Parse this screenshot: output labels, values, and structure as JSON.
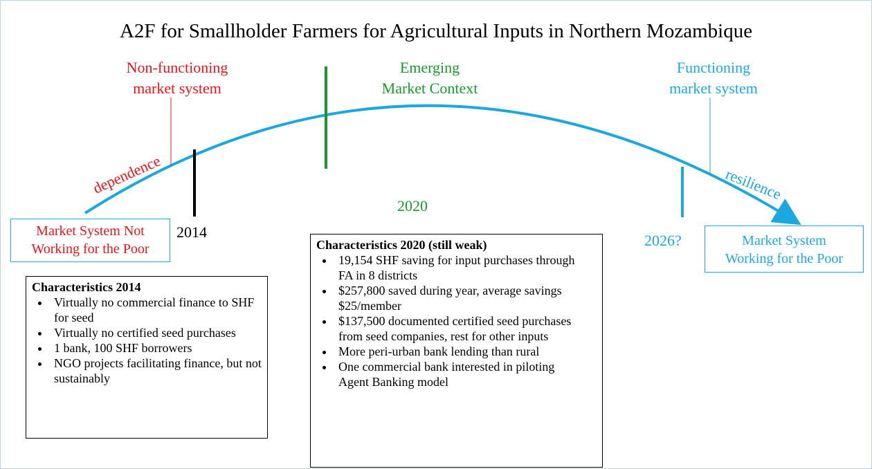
{
  "title": "A2F for Smallholder Farmers for Agricultural Inputs in Northern Mozambique",
  "stages": [
    {
      "label": [
        "Non-functioning",
        "market system"
      ]
    },
    {
      "label": [
        "Emerging",
        "Market Context"
      ]
    },
    {
      "label": [
        "Functioning",
        "market system"
      ]
    }
  ],
  "curve_labels": {
    "left": "dependence",
    "right": "resilience"
  },
  "years": {
    "y2014": "2014",
    "y2020": "2020",
    "y2026": "2026?"
  },
  "start_box": [
    "Market System Not",
    "Working for the Poor"
  ],
  "end_box": [
    "Market System",
    "Working for the Poor"
  ],
  "characteristics_2014": {
    "title": "Characteristics 2014",
    "items": [
      "Virtually no commercial finance to SHF for seed",
      "Virtually no certified seed purchases",
      "1 bank, 100 SHF borrowers",
      "NGO projects facilitating finance, but not sustainably"
    ]
  },
  "characteristics_2020": {
    "title": "Characteristics 2020  (still weak)",
    "items": [
      "19,154 SHF saving for input purchases through FA in 8 districts",
      "$257,800 saved during year, average savings $25/member",
      "$137,500 documented certified seed purchases from seed companies, rest for other inputs",
      "More peri-urban bank lending than rural",
      "One commercial bank interested in piloting Agent Banking model"
    ]
  }
}
